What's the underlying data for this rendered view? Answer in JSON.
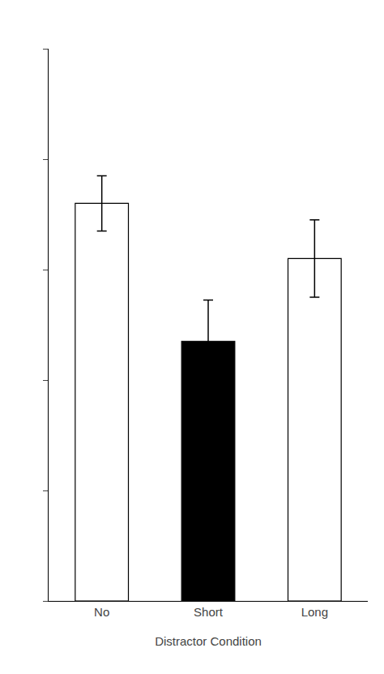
{
  "chart_data": {
    "type": "bar",
    "xlabel": "Distractor Condition",
    "categories": [
      "No",
      "Short",
      "Long"
    ],
    "values": [
      0.72,
      0.47,
      0.62
    ],
    "errors": [
      0.05,
      0.075,
      0.07
    ],
    "colors": [
      "white",
      "black",
      "white"
    ],
    "ylim": [
      0,
      1.0
    ],
    "yticks": [
      0.0,
      0.2,
      0.4,
      0.6,
      0.8,
      1.0
    ],
    "grid": false,
    "tick_labels": "x"
  }
}
